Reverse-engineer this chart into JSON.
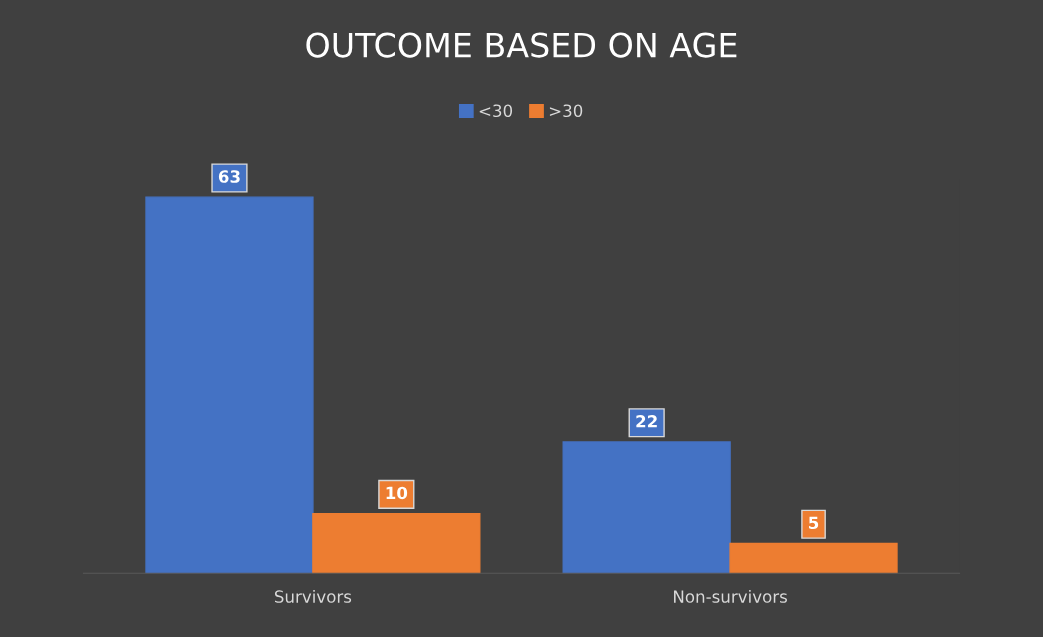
{
  "chart_data": {
    "type": "bar",
    "title": "OUTCOME BASED ON AGE",
    "categories": [
      "Survivors",
      "Non-survivors"
    ],
    "series": [
      {
        "name": "<30",
        "color": "#4472c4",
        "values": [
          63,
          22
        ]
      },
      {
        "name": ">30",
        "color": "#ed7d31",
        "values": [
          10,
          5
        ]
      }
    ],
    "data_labels": true,
    "legend": "top",
    "grid": false
  }
}
